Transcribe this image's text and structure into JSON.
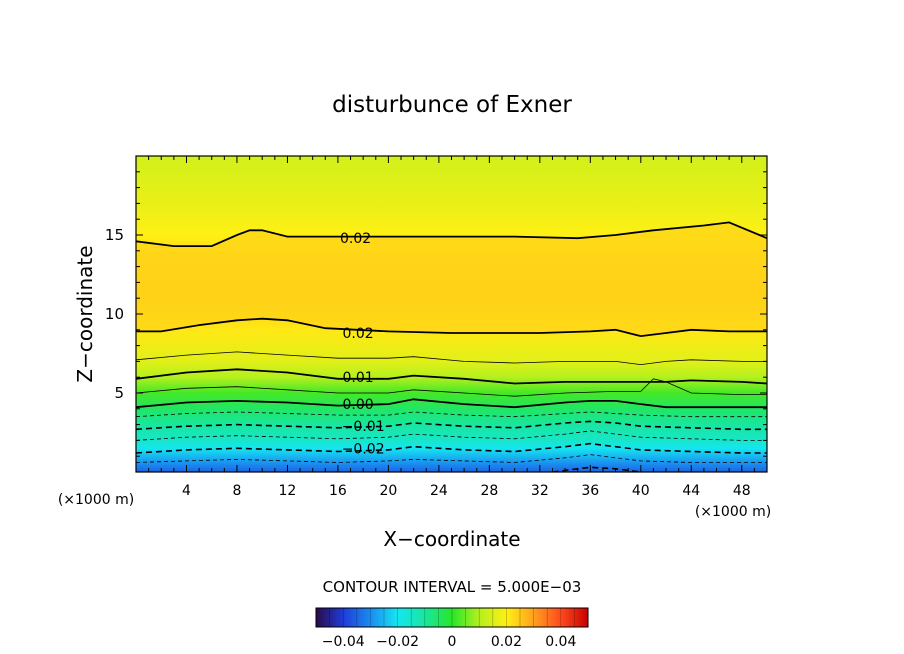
{
  "chart_data": {
    "type": "heatmap",
    "title": "disturbunce of Exner",
    "xlabel": "X−coordinate",
    "ylabel": "Z−coordinate",
    "x_unit_left": "(×1000 m)",
    "x_unit_right": "(×1000 m)",
    "xlim": [
      0,
      50
    ],
    "ylim": [
      0,
      20
    ],
    "x_ticks": [
      4,
      8,
      12,
      16,
      20,
      24,
      28,
      32,
      36,
      40,
      44,
      48
    ],
    "x_tick_labels": [
      "4",
      "8",
      "12",
      "16",
      "20",
      "24",
      "28",
      "32",
      "36",
      "40",
      "44",
      "48"
    ],
    "y_ticks": [
      5,
      10,
      15
    ],
    "y_tick_labels": [
      "5",
      "10",
      "15"
    ],
    "contour_interval_text": "CONTOUR INTERVAL = 5.000E−03",
    "contour_interval": 0.005,
    "contour_labels": [
      {
        "text": "0.02",
        "x": 17.4,
        "z": 14.8
      },
      {
        "text": "0.02",
        "x": 17.6,
        "z": 8.8
      },
      {
        "text": "0.01",
        "x": 17.6,
        "z": 6.0
      },
      {
        "text": "0.00",
        "x": 17.6,
        "z": 4.3
      },
      {
        "text": "−0.01",
        "x": 18.0,
        "z": 2.9
      },
      {
        "text": "−0.02",
        "x": 18.0,
        "z": 1.5
      }
    ],
    "field_profile": {
      "z": [
        0.0,
        0.5,
        1.0,
        1.5,
        2.0,
        3.0,
        4.0,
        5.0,
        6.0,
        7.0,
        9.0,
        11.0,
        13.0,
        15.0,
        17.0,
        20.0
      ],
      "value": [
        -0.035,
        -0.03,
        -0.025,
        -0.02,
        -0.015,
        -0.01,
        -0.005,
        0.002,
        0.01,
        0.016,
        0.021,
        0.025,
        0.024,
        0.02,
        0.017,
        0.014
      ]
    },
    "contours": [
      {
        "level": 0.02,
        "style": "solid-thick",
        "x": [
          0,
          3,
          6,
          8,
          9,
          10,
          12,
          16,
          20,
          25,
          30,
          35,
          38,
          41,
          45,
          47,
          50
        ],
        "z": [
          14.6,
          14.3,
          14.3,
          15.0,
          15.3,
          15.3,
          14.9,
          14.9,
          14.9,
          14.9,
          14.9,
          14.8,
          15.0,
          15.3,
          15.6,
          15.8,
          14.8
        ]
      },
      {
        "level": 0.02,
        "style": "solid-thick",
        "x": [
          0,
          2,
          5,
          8,
          10,
          12,
          15,
          20,
          25,
          28,
          32,
          36,
          38,
          40,
          42,
          44,
          47,
          50
        ],
        "z": [
          8.9,
          8.9,
          9.3,
          9.6,
          9.7,
          9.6,
          9.1,
          8.9,
          8.8,
          8.8,
          8.8,
          8.9,
          9.0,
          8.6,
          8.8,
          9.0,
          8.9,
          8.9
        ]
      },
      {
        "level": 0.015,
        "style": "solid-thin",
        "x": [
          0,
          4,
          8,
          12,
          16,
          20,
          22,
          26,
          30,
          34,
          38,
          40,
          42,
          44,
          48,
          50
        ],
        "z": [
          7.1,
          7.4,
          7.6,
          7.4,
          7.2,
          7.2,
          7.3,
          7.0,
          6.9,
          7.0,
          7.0,
          6.8,
          7.0,
          7.1,
          7.0,
          7.0
        ]
      },
      {
        "level": 0.01,
        "style": "solid-thick",
        "x": [
          0,
          4,
          8,
          12,
          16,
          20,
          22,
          26,
          30,
          34,
          38,
          40,
          42,
          44,
          48,
          50
        ],
        "z": [
          5.9,
          6.3,
          6.5,
          6.3,
          5.9,
          5.9,
          6.1,
          5.9,
          5.6,
          5.7,
          5.7,
          5.7,
          5.7,
          5.8,
          5.7,
          5.6
        ]
      },
      {
        "level": 0.005,
        "style": "solid-thin",
        "x": [
          0,
          4,
          8,
          12,
          16,
          20,
          22,
          26,
          30,
          34,
          38,
          40,
          41,
          42,
          44,
          48,
          50
        ],
        "z": [
          5.0,
          5.3,
          5.4,
          5.2,
          5.0,
          5.0,
          5.2,
          5.0,
          4.8,
          5.0,
          5.1,
          5.1,
          5.9,
          5.7,
          5.0,
          4.9,
          4.9
        ]
      },
      {
        "level": 0.0,
        "style": "solid-thick",
        "x": [
          0,
          4,
          8,
          12,
          16,
          20,
          22,
          26,
          30,
          34,
          36,
          38,
          40,
          42,
          44,
          48,
          50
        ],
        "z": [
          4.1,
          4.4,
          4.5,
          4.4,
          4.2,
          4.3,
          4.6,
          4.3,
          4.1,
          4.4,
          4.5,
          4.5,
          4.3,
          4.1,
          4.1,
          4.1,
          4.1
        ]
      },
      {
        "level": -0.005,
        "style": "dashed",
        "x": [
          0,
          4,
          8,
          12,
          16,
          20,
          22,
          26,
          30,
          34,
          36,
          38,
          40,
          44,
          48,
          50
        ],
        "z": [
          3.5,
          3.7,
          3.8,
          3.7,
          3.6,
          3.6,
          3.8,
          3.6,
          3.5,
          3.7,
          3.8,
          3.7,
          3.6,
          3.5,
          3.5,
          3.5
        ]
      },
      {
        "level": -0.01,
        "style": "dashed-thick",
        "x": [
          0,
          4,
          8,
          12,
          16,
          20,
          22,
          26,
          30,
          34,
          36,
          38,
          40,
          44,
          48,
          50
        ],
        "z": [
          2.7,
          2.9,
          3.0,
          2.9,
          2.8,
          2.9,
          3.1,
          2.9,
          2.8,
          3.1,
          3.2,
          3.1,
          2.9,
          2.8,
          2.7,
          2.7
        ]
      },
      {
        "level": -0.015,
        "style": "dashed",
        "x": [
          0,
          4,
          8,
          12,
          16,
          20,
          22,
          26,
          30,
          34,
          36,
          38,
          40,
          44,
          48,
          50
        ],
        "z": [
          2.0,
          2.2,
          2.3,
          2.2,
          2.1,
          2.2,
          2.4,
          2.2,
          2.1,
          2.4,
          2.6,
          2.4,
          2.2,
          2.1,
          2.0,
          2.0
        ]
      },
      {
        "level": -0.02,
        "style": "dashed-thick",
        "x": [
          0,
          4,
          8,
          12,
          16,
          20,
          22,
          26,
          30,
          34,
          36,
          38,
          40,
          44,
          48,
          50
        ],
        "z": [
          1.2,
          1.4,
          1.5,
          1.4,
          1.3,
          1.4,
          1.6,
          1.4,
          1.3,
          1.6,
          1.8,
          1.6,
          1.4,
          1.3,
          1.2,
          1.2
        ]
      },
      {
        "level": -0.025,
        "style": "dashed",
        "x": [
          0,
          4,
          8,
          12,
          16,
          20,
          22,
          26,
          30,
          34,
          36,
          38,
          40,
          44,
          48,
          50
        ],
        "z": [
          0.6,
          0.7,
          0.8,
          0.7,
          0.6,
          0.7,
          0.8,
          0.7,
          0.6,
          0.9,
          1.1,
          0.9,
          0.7,
          0.6,
          0.6,
          0.6
        ]
      },
      {
        "level": -0.03,
        "style": "dashed-thick",
        "x": [
          33,
          35,
          36,
          38,
          40
        ],
        "z": [
          0.0,
          0.2,
          0.3,
          0.2,
          0.0
        ]
      }
    ],
    "colorbar": {
      "min": -0.05,
      "max": 0.05,
      "ticks": [
        -0.04,
        -0.02,
        0,
        0.02,
        0.04
      ],
      "tick_labels": [
        "−0.04",
        "−0.02",
        "0",
        "0.02",
        "0.04"
      ]
    },
    "colorscale": {
      "values": [
        -0.05,
        -0.04,
        -0.03,
        -0.02,
        -0.01,
        0.0,
        0.01,
        0.02,
        0.03,
        0.04,
        0.05
      ],
      "colors": [
        "#2a0a4a",
        "#1e3cd8",
        "#1a8cf0",
        "#15e6f0",
        "#19e6a0",
        "#28e628",
        "#b4f01e",
        "#fff014",
        "#ffa01e",
        "#ff4a1e",
        "#c80000"
      ]
    }
  }
}
